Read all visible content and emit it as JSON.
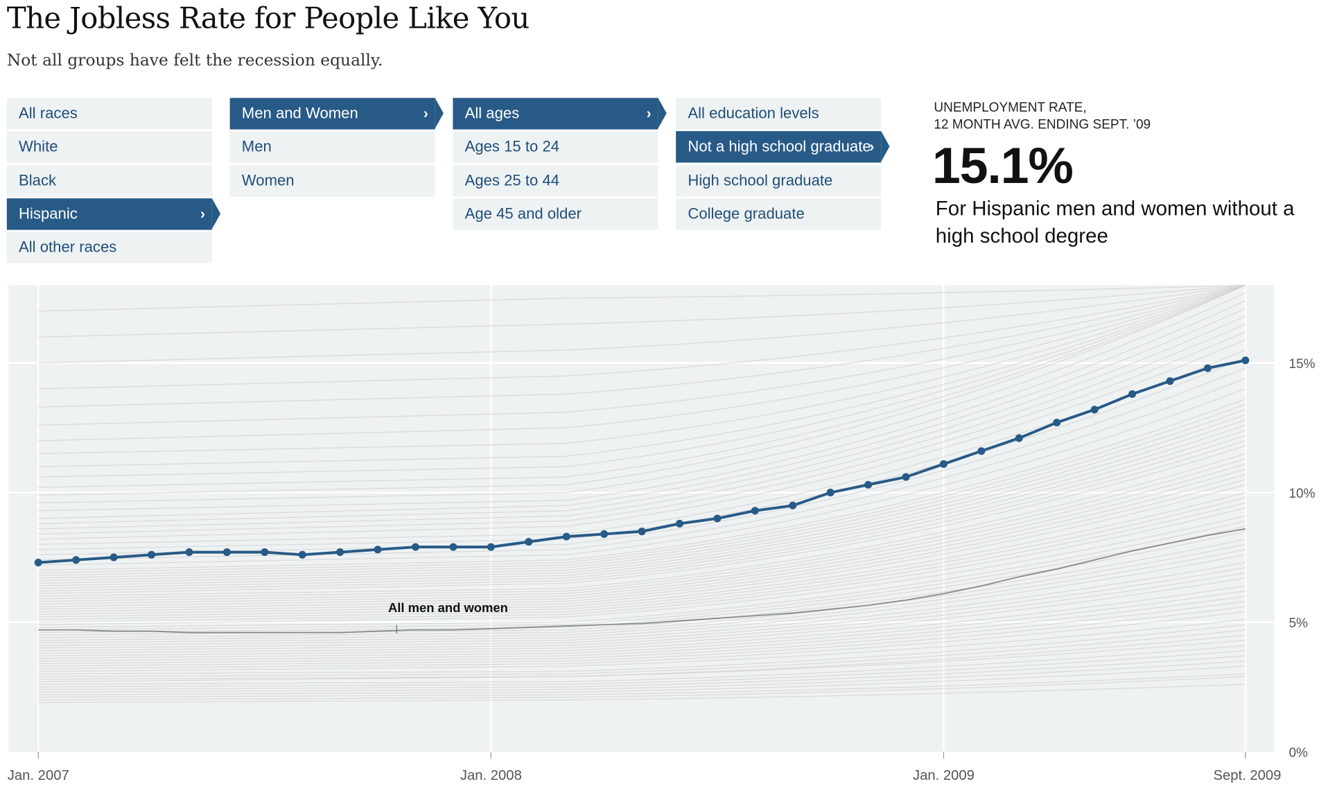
{
  "header": {
    "title": "The Jobless Rate for People Like You",
    "subtitle": "Not all groups have felt the recession equally."
  },
  "filters": {
    "race": {
      "items": [
        "All races",
        "White",
        "Black",
        "Hispanic",
        "All other races"
      ],
      "selected": 3
    },
    "sex": {
      "items": [
        "Men and Women",
        "Men",
        "Women"
      ],
      "selected": 0
    },
    "age": {
      "items": [
        "All ages",
        "Ages 15 to 24",
        "Ages 25 to 44",
        "Age 45 and older"
      ],
      "selected": 0
    },
    "education": {
      "items": [
        "All education levels",
        "Not a high school graduate",
        "High school graduate",
        "College graduate"
      ],
      "selected": 1
    }
  },
  "chevron": "›",
  "result": {
    "label_line1": "UNEMPLOYMENT RATE,",
    "label_line2": "12 MONTH AVG. ENDING SEPT. ’09",
    "value": "15.1%",
    "description": "For Hispanic men and women without a high school degree"
  },
  "colors": {
    "highlight": "#285a87",
    "average": "#8a8a8a",
    "background_lines": "#d2d2d2",
    "plot_bg": "#eef2f3"
  },
  "chart_data": {
    "type": "line",
    "x_start": "Jan. 2007",
    "x_end": "Sept. 2009",
    "x_ticks": [
      {
        "month": 0,
        "label": "Jan. 2007"
      },
      {
        "month": 12,
        "label": "Jan. 2008"
      },
      {
        "month": 24,
        "label": "Jan. 2009"
      },
      {
        "month": 32,
        "label": "Sept. 2009"
      }
    ],
    "y_ticks": [
      {
        "value": 0,
        "label": "0%"
      },
      {
        "value": 5,
        "label": "5%"
      },
      {
        "value": 10,
        "label": "10%"
      },
      {
        "value": 15,
        "label": "15%"
      }
    ],
    "ylim": [
      0,
      18
    ],
    "grid": true,
    "annotation": {
      "text": "All men and women",
      "month": 9.5
    },
    "series": [
      {
        "role": "highlight",
        "values": [
          7.3,
          7.4,
          7.5,
          7.6,
          7.7,
          7.7,
          7.7,
          7.6,
          7.7,
          7.8,
          7.9,
          7.9,
          7.9,
          8.1,
          8.3,
          8.4,
          8.5,
          8.8,
          9.0,
          9.3,
          9.5,
          10.0,
          10.3,
          10.6,
          11.1,
          11.6,
          12.1,
          12.7,
          13.2,
          13.8,
          14.3,
          14.8,
          15.1
        ]
      },
      {
        "role": "average",
        "name": "All men and women",
        "values": [
          4.7,
          4.7,
          4.65,
          4.65,
          4.6,
          4.6,
          4.6,
          4.6,
          4.6,
          4.65,
          4.7,
          4.7,
          4.75,
          4.8,
          4.85,
          4.9,
          4.95,
          5.05,
          5.15,
          5.25,
          5.35,
          5.5,
          5.65,
          5.85,
          6.1,
          6.4,
          6.75,
          7.05,
          7.4,
          7.75,
          8.05,
          8.35,
          8.6
        ]
      }
    ],
    "background_lines": [
      [
        2.0,
        2.1,
        2.9
      ],
      [
        2.2,
        2.3,
        3.3
      ],
      [
        2.4,
        2.5,
        3.7
      ],
      [
        2.6,
        2.7,
        4.1
      ],
      [
        2.8,
        2.9,
        4.5
      ],
      [
        3.0,
        3.1,
        4.9
      ],
      [
        3.2,
        3.4,
        5.4
      ],
      [
        3.4,
        3.6,
        5.8
      ],
      [
        3.6,
        3.8,
        6.2
      ],
      [
        3.8,
        4.0,
        6.7
      ],
      [
        4.0,
        4.2,
        7.1
      ],
      [
        4.2,
        4.4,
        7.6
      ],
      [
        4.4,
        4.6,
        8.0
      ],
      [
        4.6,
        4.8,
        8.5
      ],
      [
        4.8,
        5.0,
        8.9
      ],
      [
        5.0,
        5.3,
        9.4
      ],
      [
        5.2,
        5.5,
        9.8
      ],
      [
        5.4,
        5.7,
        10.3
      ],
      [
        5.6,
        5.9,
        10.7
      ],
      [
        5.8,
        6.1,
        11.1
      ],
      [
        6.0,
        6.3,
        11.5
      ],
      [
        6.2,
        6.6,
        12.0
      ],
      [
        6.4,
        6.8,
        12.4
      ],
      [
        6.6,
        7.0,
        12.8
      ],
      [
        6.8,
        7.2,
        13.2
      ],
      [
        7.0,
        7.4,
        13.6
      ],
      [
        7.2,
        7.6,
        14.0
      ],
      [
        7.4,
        7.8,
        14.4
      ],
      [
        7.6,
        8.0,
        14.8
      ],
      [
        7.8,
        8.2,
        15.2
      ],
      [
        8.0,
        8.4,
        15.5
      ],
      [
        8.2,
        8.7,
        15.9
      ],
      [
        8.4,
        8.9,
        16.2
      ],
      [
        8.6,
        9.1,
        16.5
      ],
      [
        8.8,
        9.3,
        16.8
      ],
      [
        9.0,
        9.5,
        17.1
      ],
      [
        9.3,
        9.7,
        17.4
      ],
      [
        9.6,
        10.0,
        17.7
      ],
      [
        9.9,
        10.3,
        18.0
      ],
      [
        10.2,
        10.6,
        18.0
      ],
      [
        10.6,
        11.0,
        18.0
      ],
      [
        11.0,
        11.4,
        18.0
      ],
      [
        11.5,
        11.9,
        18.0
      ],
      [
        12.0,
        12.5,
        18.0
      ],
      [
        12.6,
        13.1,
        18.0
      ],
      [
        13.3,
        13.8,
        18.0
      ],
      [
        14.0,
        14.5,
        18.0
      ],
      [
        15.0,
        15.5,
        18.0
      ],
      [
        16.0,
        16.5,
        18.0
      ],
      [
        17.0,
        17.5,
        18.0
      ],
      [
        1.9,
        2.0,
        2.6
      ],
      [
        2.1,
        2.2,
        3.0
      ],
      [
        2.3,
        2.4,
        3.5
      ],
      [
        2.5,
        2.6,
        3.9
      ],
      [
        2.7,
        2.9,
        4.3
      ],
      [
        2.9,
        3.0,
        4.7
      ],
      [
        3.1,
        3.3,
        5.1
      ],
      [
        3.3,
        3.5,
        5.6
      ],
      [
        3.5,
        3.7,
        6.0
      ],
      [
        3.7,
        3.9,
        6.4
      ],
      [
        3.9,
        4.1,
        6.9
      ],
      [
        4.1,
        4.3,
        7.3
      ],
      [
        4.3,
        4.5,
        7.8
      ],
      [
        4.5,
        4.7,
        8.2
      ],
      [
        4.7,
        4.9,
        8.7
      ],
      [
        4.9,
        5.2,
        9.1
      ],
      [
        5.1,
        5.4,
        9.6
      ],
      [
        5.3,
        5.6,
        10.0
      ],
      [
        5.5,
        5.8,
        10.5
      ],
      [
        5.7,
        6.0,
        10.9
      ],
      [
        5.9,
        6.2,
        11.3
      ],
      [
        6.1,
        6.5,
        11.8
      ],
      [
        6.3,
        6.7,
        12.2
      ],
      [
        6.5,
        6.9,
        12.6
      ],
      [
        6.7,
        7.1,
        13.0
      ],
      [
        6.9,
        7.3,
        13.4
      ]
    ]
  }
}
